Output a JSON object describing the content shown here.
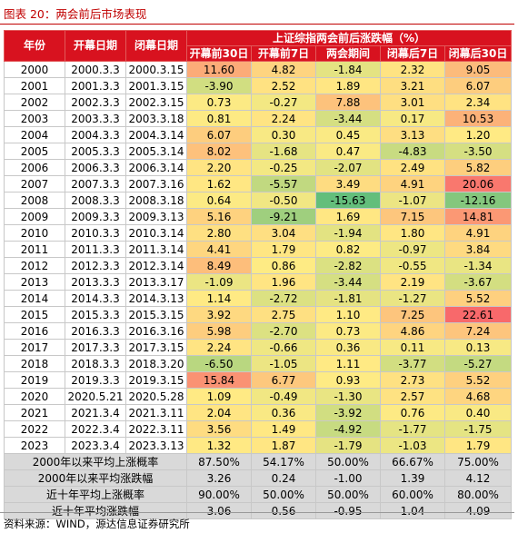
{
  "caption": "图表 20：两会前后市场表现",
  "source": "资料来源：WIND，源达信息证券研究所",
  "header": {
    "year": "年份",
    "open": "开幕日期",
    "close": "闭幕日期",
    "group": "上证综指两会前后涨跌幅（%）",
    "cols": [
      "开幕前30日",
      "开幕前7日",
      "两会期间",
      "闭幕后7日",
      "闭幕后30日"
    ]
  },
  "rows": [
    {
      "year": "2000",
      "open": "2000.3.3",
      "close": "2000.3.15",
      "vals": [
        "11.60",
        "4.82",
        "-1.84",
        "2.32",
        "9.05"
      ]
    },
    {
      "year": "2001",
      "open": "2001.3.3",
      "close": "2001.3.15",
      "vals": [
        "-3.90",
        "2.52",
        "1.89",
        "3.21",
        "6.07"
      ]
    },
    {
      "year": "2002",
      "open": "2002.3.3",
      "close": "2002.3.15",
      "vals": [
        "0.73",
        "-0.27",
        "7.88",
        "3.01",
        "2.34"
      ]
    },
    {
      "year": "2003",
      "open": "2003.3.3",
      "close": "2003.3.18",
      "vals": [
        "0.81",
        "2.24",
        "-3.44",
        "0.17",
        "10.53"
      ]
    },
    {
      "year": "2004",
      "open": "2004.3.3",
      "close": "2004.3.14",
      "vals": [
        "6.07",
        "0.30",
        "0.45",
        "3.13",
        "1.20"
      ]
    },
    {
      "year": "2005",
      "open": "2005.3.3",
      "close": "2005.3.14",
      "vals": [
        "8.02",
        "-1.68",
        "0.47",
        "-4.83",
        "-3.50"
      ]
    },
    {
      "year": "2006",
      "open": "2006.3.3",
      "close": "2006.3.14",
      "vals": [
        "2.20",
        "-0.25",
        "-2.07",
        "2.49",
        "5.82"
      ]
    },
    {
      "year": "2007",
      "open": "2007.3.3",
      "close": "2007.3.16",
      "vals": [
        "1.62",
        "-5.57",
        "3.49",
        "4.91",
        "20.06"
      ]
    },
    {
      "year": "2008",
      "open": "2008.3.3",
      "close": "2008.3.18",
      "vals": [
        "0.64",
        "-0.50",
        "-15.63",
        "-1.07",
        "-12.16"
      ]
    },
    {
      "year": "2009",
      "open": "2009.3.3",
      "close": "2009.3.13",
      "vals": [
        "5.16",
        "-9.21",
        "1.69",
        "7.15",
        "14.81"
      ]
    },
    {
      "year": "2010",
      "open": "2010.3.3",
      "close": "2010.3.14",
      "vals": [
        "2.80",
        "3.04",
        "-1.94",
        "1.80",
        "4.91"
      ]
    },
    {
      "year": "2011",
      "open": "2011.3.3",
      "close": "2011.3.14",
      "vals": [
        "4.41",
        "1.79",
        "0.82",
        "-0.97",
        "3.84"
      ]
    },
    {
      "year": "2012",
      "open": "2012.3.3",
      "close": "2012.3.14",
      "vals": [
        "8.49",
        "0.86",
        "-2.82",
        "-0.55",
        "-1.34"
      ]
    },
    {
      "year": "2013",
      "open": "2013.3.3",
      "close": "2013.3.17",
      "vals": [
        "-1.09",
        "1.96",
        "-3.44",
        "2.19",
        "-3.67"
      ]
    },
    {
      "year": "2014",
      "open": "2014.3.3",
      "close": "2014.3.13",
      "vals": [
        "1.14",
        "-2.72",
        "-1.81",
        "-1.27",
        "5.52"
      ]
    },
    {
      "year": "2015",
      "open": "2015.3.3",
      "close": "2015.3.15",
      "vals": [
        "3.92",
        "2.75",
        "1.10",
        "7.25",
        "22.61"
      ]
    },
    {
      "year": "2016",
      "open": "2016.3.3",
      "close": "2016.3.16",
      "vals": [
        "5.98",
        "-2.70",
        "0.73",
        "4.86",
        "7.24"
      ]
    },
    {
      "year": "2017",
      "open": "2017.3.3",
      "close": "2017.3.15",
      "vals": [
        "2.24",
        "-0.66",
        "0.36",
        "0.11",
        "0.13"
      ]
    },
    {
      "year": "2018",
      "open": "2018.3.3",
      "close": "2018.3.20",
      "vals": [
        "-6.50",
        "-1.05",
        "1.11",
        "-3.77",
        "-5.27"
      ]
    },
    {
      "year": "2019",
      "open": "2019.3.3",
      "close": "2019.3.15",
      "vals": [
        "15.84",
        "6.77",
        "0.93",
        "2.73",
        "5.52"
      ]
    },
    {
      "year": "2020",
      "open": "2020.5.21",
      "close": "2020.5.28",
      "vals": [
        "1.09",
        "-0.49",
        "-1.30",
        "2.57",
        "4.68"
      ]
    },
    {
      "year": "2021",
      "open": "2021.3.4",
      "close": "2021.3.11",
      "vals": [
        "2.04",
        "0.36",
        "-3.92",
        "0.76",
        "0.40"
      ]
    },
    {
      "year": "2022",
      "open": "2022.3.4",
      "close": "2022.3.11",
      "vals": [
        "3.56",
        "1.49",
        "-4.92",
        "-1.77",
        "-1.75"
      ]
    },
    {
      "year": "2023",
      "open": "2023.3.4",
      "close": "2023.3.13",
      "vals": [
        "1.32",
        "1.87",
        "-1.79",
        "-1.03",
        "1.79"
      ]
    }
  ],
  "summary": [
    {
      "label": "2000年以来平均上涨概率",
      "vals": [
        "87.50%",
        "54.17%",
        "50.00%",
        "66.67%",
        "75.00%"
      ]
    },
    {
      "label": "2000年以来平均涨跌幅",
      "vals": [
        "3.26",
        "0.24",
        "-1.00",
        "1.39",
        "4.12"
      ]
    },
    {
      "label": "近十年平均上涨概率",
      "vals": [
        "90.00%",
        "50.00%",
        "50.00%",
        "60.00%",
        "80.00%"
      ]
    },
    {
      "label": "近十年平均涨跌幅",
      "vals": [
        "3.06",
        "0.56",
        "-0.95",
        "1.04",
        "4.09"
      ]
    }
  ],
  "colors": {
    "header_red": "#d8121f",
    "heat_low": "#63be7b",
    "heat_mid": "#ffeb84",
    "heat_high": "#f8696b",
    "summary_grey": "#d9d9d9"
  }
}
